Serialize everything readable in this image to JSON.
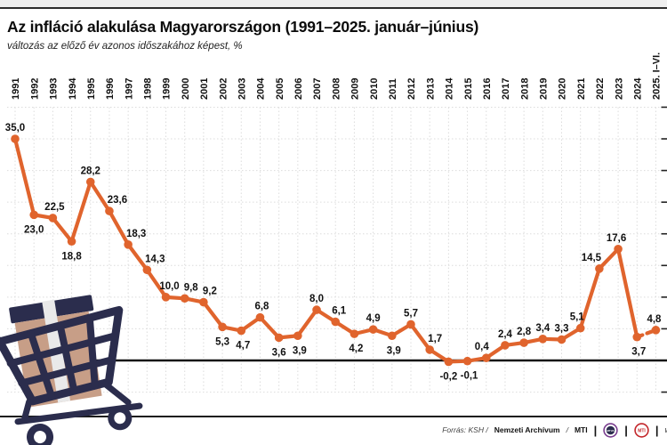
{
  "header": {
    "title": "Az infláció alakulása Magyarországon (1991–2025. január–június)",
    "subtitle": "változás az előző év azonos időszakához képest, %"
  },
  "chart_data": {
    "type": "line",
    "title": "Az infláció alakulása Magyarországon (1991–2025. január–június)",
    "subtitle": "változás az előző év azonos időszakához képest, %",
    "unit": "%",
    "categories": [
      "1991",
      "1992",
      "1993",
      "1994",
      "1995",
      "1996",
      "1997",
      "1998",
      "1999",
      "2000",
      "2001",
      "2002",
      "2003",
      "2004",
      "2005",
      "2006",
      "2007",
      "2008",
      "2009",
      "2010",
      "2011",
      "2012",
      "2013",
      "2014",
      "2015",
      "2016",
      "2017",
      "2018",
      "2019",
      "2020",
      "2021",
      "2022",
      "2023",
      "2024",
      "2025. I–VI."
    ],
    "values": [
      35.0,
      23.0,
      22.5,
      18.8,
      28.2,
      23.6,
      18.3,
      14.3,
      10.0,
      9.8,
      9.2,
      5.3,
      4.7,
      6.8,
      3.6,
      3.9,
      8.0,
      6.1,
      4.2,
      4.9,
      3.9,
      5.7,
      1.7,
      -0.2,
      -0.1,
      0.4,
      2.4,
      2.8,
      3.4,
      3.3,
      5.1,
      14.5,
      17.6,
      3.7,
      4.8
    ],
    "point_labels": [
      "35,0",
      "23,0",
      "22,5",
      "18,8",
      "28,2",
      "23,6",
      "18,3",
      "14,3",
      "10,0",
      "9,8",
      "9,2",
      "5,3",
      "4,7",
      "6,8",
      "3,6",
      "3,9",
      "8,0",
      "6,1",
      "4,2",
      "4,9",
      "3,9",
      "5,7",
      "1,7",
      "-0,2",
      "-0,1",
      "0,4",
      "2,4",
      "2,8",
      "3,4",
      "3,3",
      "5,1",
      "14,5",
      "17,6",
      "3,7",
      "4,8"
    ],
    "label_pos": [
      "above",
      "below",
      "above",
      "below",
      "above",
      "above",
      "above",
      "above",
      "above",
      "above",
      "above",
      "below",
      "below",
      "above",
      "below",
      "below",
      "above",
      "above",
      "below",
      "above",
      "below",
      "above",
      "above",
      "below",
      "below",
      "above",
      "above",
      "above",
      "above",
      "above",
      "above",
      "above",
      "above",
      "below",
      "above"
    ],
    "label_dx": [
      0,
      0,
      2,
      0,
      0,
      9,
      9,
      9,
      4,
      7,
      7,
      0,
      2,
      2,
      0,
      2,
      0,
      4,
      2,
      0,
      2,
      0,
      6,
      0,
      2,
      -5,
      0,
      0,
      0,
      0,
      -4,
      -9,
      -2,
      2,
      -2
    ],
    "ylim": [
      -5,
      40
    ],
    "grid": true,
    "grid_step": 5,
    "zero_axis": true,
    "last_segment_dashed": true,
    "legend": "none",
    "line_color": "#E0642D",
    "label_color": "#111111",
    "grid_color": "#DCDCDC"
  },
  "footer": {
    "source_italic": "Forrás: KSH /",
    "source_bold_1": "Nemzeti Archívum",
    "source_divider": "/",
    "source_bold_2": "MTI",
    "pipe": "|",
    "logo_mtva": "MTVA",
    "logo_mti": "MTI",
    "clipped_text": "w",
    "mtva_color": "#7A3E8F",
    "mti_color": "#C3272B"
  },
  "illustration": {
    "name": "shopping cart with cardboard box",
    "cart_color": "#2B2D4D",
    "box_color": "#C79E87",
    "tape_color": "#E9E9E9"
  }
}
